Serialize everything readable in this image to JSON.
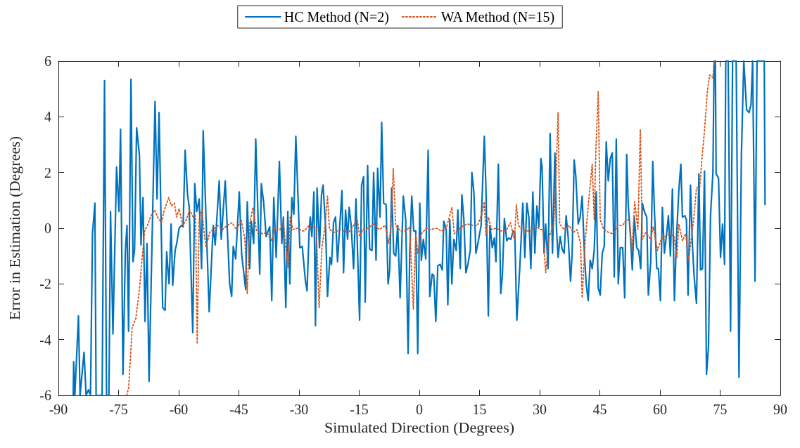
{
  "chart_data": {
    "type": "line",
    "xlabel": "Simulated Direction (Degrees)",
    "ylabel": "Error in Estimation (Degrees)",
    "xlim": [
      -90,
      90
    ],
    "xticks": [
      -90,
      -75,
      -60,
      -45,
      -30,
      -15,
      0,
      15,
      30,
      45,
      60,
      75,
      90
    ],
    "ylim": [
      -6,
      6
    ],
    "yticks": [
      -6,
      -4,
      -2,
      0,
      2,
      4,
      6
    ],
    "grid": false,
    "legend": "top",
    "marker": "none",
    "series": [
      {
        "name": "HC Method (N=2)",
        "color": "#0072bd",
        "line_style": "solid",
        "x": [
          -86.3,
          -86.2,
          -85.9,
          -85.0,
          -84.6,
          -83.6,
          -83.1,
          -82.5,
          -82.0,
          -81.5,
          -80.9,
          -80.6,
          -79.1,
          -78.5,
          -78.0,
          -77.4,
          -77.0,
          -76.4,
          -75.5,
          -74.9,
          -74.5,
          -73.9,
          -73.3,
          -72.9,
          -72.5,
          -71.9,
          -71.4,
          -71.0,
          -70.5,
          -69.8,
          -69.4,
          -68.9,
          -68.4,
          -67.9,
          -67.4,
          -65.9,
          -65.4,
          -64.9,
          -64.0,
          -63.4,
          -63.0,
          -62.4,
          -61.9,
          -61.5,
          -60.9,
          -60.5,
          -59.9,
          -59.3,
          -58.9,
          -58.4,
          -57.8,
          -57.4,
          -56.5,
          -56.0,
          -55.5,
          -54.9,
          -54.3,
          -53.9,
          -53.2,
          -52.4,
          -51.4,
          -50.9,
          -49.9,
          -49.4,
          -48.4,
          -47.3,
          -46.8,
          -46.4,
          -45.8,
          -44.9,
          -44.3,
          -43.3,
          -42.9,
          -42.3,
          -41.9,
          -41.3,
          -40.8,
          -39.8,
          -39.4,
          -38.8,
          -38.2,
          -37.7,
          -37.3,
          -36.8,
          -36.3,
          -35.7,
          -34.9,
          -34.3,
          -33.9,
          -33.3,
          -32.8,
          -32.3,
          -31.8,
          -31.3,
          -30.8,
          -29.8,
          -29.2,
          -28.4,
          -28.0,
          -27.5,
          -27.2,
          -26.8,
          -26.3,
          -25.9,
          -25.5,
          -24.9,
          -24.4,
          -24.0,
          -23.4,
          -22.9,
          -22.3,
          -21.9,
          -21.4,
          -20.9,
          -20.4,
          -19.3,
          -18.9,
          -18.4,
          -17.9,
          -17.5,
          -17.0,
          -16.4,
          -15.8,
          -14.9,
          -14.4,
          -13.9,
          -13.5,
          -12.9,
          -12.4,
          -11.8,
          -11.4,
          -10.8,
          -10.4,
          -9.8,
          -9.4,
          -8.9,
          -8.3,
          -7.8,
          -7.4,
          -6.9,
          -6.4,
          -5.9,
          -5.4,
          -4.8,
          -4.0,
          -3.4,
          -2.8,
          -2.4,
          -1.9,
          -1.4,
          -0.9,
          -0.4,
          0.1,
          0.5,
          1.0,
          1.6,
          2.2,
          2.6,
          3.2,
          3.6,
          4.1,
          4.6,
          5.2,
          5.7,
          6.1,
          6.7,
          7.1,
          7.6,
          8.1,
          8.6,
          9.2,
          9.6,
          10.2,
          10.6,
          11.1,
          11.6,
          12.1,
          12.7,
          13.1,
          13.6,
          14.1,
          14.6,
          15.4,
          16.2,
          16.6,
          17.2,
          17.6,
          18.2,
          18.7,
          19.1,
          19.7,
          20.3,
          20.7,
          21.2,
          21.8,
          22.3,
          22.8,
          23.4,
          23.8,
          24.3,
          25.1,
          25.8,
          26.3,
          26.8,
          27.3,
          27.8,
          28.3,
          28.8,
          29.3,
          29.8,
          30.3,
          30.6,
          31.1,
          31.5,
          32.1,
          32.6,
          33.2,
          33.8,
          34.2,
          34.6,
          35.1,
          35.6,
          36.1,
          36.6,
          37.1,
          37.7,
          38.1,
          38.6,
          39.0,
          39.6,
          40.1,
          40.6,
          41.2,
          41.6,
          42.1,
          42.6,
          43.1,
          43.6,
          44.1,
          44.6,
          45.1,
          45.6,
          46.1,
          46.6,
          47.1,
          47.6,
          48.1,
          48.6,
          49.1,
          49.6,
          50.1,
          50.7,
          51.2,
          51.7,
          52.1,
          52.6,
          53.1,
          53.6,
          54.2,
          54.7,
          55.2,
          55.6,
          56.1,
          56.7,
          57.1,
          57.7,
          58.2,
          58.6,
          59.2,
          59.6,
          60.1,
          60.6,
          61.1,
          61.7,
          62.1,
          62.6,
          63.1,
          63.6,
          64.1,
          64.7,
          65.2,
          65.6,
          66.2,
          66.6,
          67.0,
          67.6,
          68.1,
          68.5,
          69.1,
          69.7,
          70.1,
          70.6,
          71.1,
          71.6,
          72.1,
          72.6,
          73.2,
          73.5,
          73.8,
          74.0,
          74.6,
          75.1,
          75.6,
          76.1,
          76.4,
          77.0,
          77.6,
          78.1,
          79.0,
          79.7,
          80.3,
          80.9,
          81.6,
          82.2,
          82.7,
          83.1,
          83.7,
          84.2,
          86.0,
          86.2
        ],
        "values": [
          -6,
          -4.8,
          -6,
          -3.15,
          -6,
          -4.45,
          -6,
          -5.8,
          -6,
          -0.2,
          0.9,
          -6,
          -6,
          5.3,
          -6,
          -6,
          0.6,
          -3.8,
          2.2,
          0.6,
          3.55,
          -5.25,
          -0.8,
          0.1,
          -3.7,
          5.35,
          -1.2,
          -0.75,
          3.6,
          2.65,
          -0.6,
          1.1,
          -3.35,
          -0.55,
          -5.5,
          4.55,
          1.05,
          4.15,
          -2.85,
          -2.95,
          -0.85,
          -2.0,
          0.15,
          -2.05,
          -0.8,
          -0.55,
          0,
          0.1,
          0.05,
          2.8,
          1.2,
          0.8,
          -3.75,
          1.6,
          0.6,
          1.05,
          -1.45,
          3.5,
          0.4,
          -3.0,
          0.1,
          -0.6,
          1.7,
          -0.4,
          1.7,
          -2.0,
          -2.45,
          -0.65,
          -1.1,
          1.3,
          -0.95,
          -2.2,
          0.95,
          -1.45,
          0.25,
          -0.55,
          3.2,
          -1.65,
          1.6,
          0.9,
          -0.3,
          -0.1,
          0.05,
          -2.6,
          1.1,
          -1.05,
          2.4,
          -0.55,
          0.4,
          -2.85,
          0.6,
          -2.0,
          1.1,
          0.5,
          3.3,
          -0.7,
          -0.65,
          -1.9,
          -2.25,
          -0.15,
          0.4,
          -0.3,
          1.3,
          -3.5,
          1.45,
          -0.7,
          1.2,
          1.55,
          0.1,
          -2.45,
          -1.05,
          -1.3,
          0.2,
          0.4,
          -1.2,
          1.35,
          -1.6,
          0.65,
          -0.4,
          0.75,
          0.1,
          -1.45,
          1.05,
          -3.3,
          1.55,
          1.85,
          -2.65,
          2.25,
          -0.75,
          -0.8,
          2.0,
          -1.15,
          2.15,
          0.4,
          3.8,
          0.9,
          0.85,
          -2.0,
          -1.5,
          1.45,
          -0.9,
          -1.0,
          0.1,
          -2.5,
          1.15,
          0.3,
          -4.5,
          -0.95,
          1.15,
          -0.1,
          -0.1,
          -4.5,
          0.9,
          -1.15,
          -0.4,
          -1.1,
          2.8,
          -2.45,
          -1.65,
          -1.7,
          -3.35,
          -1.35,
          -1.3,
          -1.5,
          0.25,
          -0.05,
          -2.75,
          0.3,
          -2.0,
          -0.4,
          -0.8,
          0.65,
          -1.45,
          1.2,
          0.3,
          -1.6,
          -1.3,
          -0.8,
          2.0,
          1.3,
          -0.9,
          -0.55,
          0.1,
          3.3,
          1.45,
          -3.15,
          0.1,
          -0.7,
          -0.35,
          -1.2,
          2.3,
          -2.35,
          -1.7,
          0.35,
          -0.45,
          -0.35,
          -0.4,
          -0.1,
          -0.15,
          -3.3,
          -1.25,
          0.9,
          -1.05,
          0.9,
          0.4,
          -1.45,
          1.3,
          -0.9,
          0.8,
          0.05,
          2.5,
          2.2,
          -0.9,
          0.15,
          -1.45,
          3.4,
          -0.9,
          2.7,
          -0.05,
          -1.05,
          -0.3,
          -0.75,
          -0.9,
          0.45,
          -0.3,
          -1.9,
          -0.9,
          2.45,
          1.9,
          0.15,
          0.4,
          1.15,
          -1.05,
          -2.0,
          -2.6,
          -1.15,
          -1.45,
          -0.8,
          1.3,
          -2.15,
          -2.4,
          -0.9,
          -0.65,
          3.1,
          1.7,
          2.5,
          2.7,
          -1.75,
          3.2,
          -2.0,
          -0.7,
          -0.7,
          -2.5,
          2.65,
          0.8,
          -0.2,
          -1.5,
          0.4,
          -0.7,
          -0.8,
          -1.45,
          0.9,
          0.6,
          0.4,
          -2.4,
          -1.2,
          2.4,
          0.7,
          -1.45,
          -1.45,
          -2.6,
          0.75,
          -0.9,
          -0.15,
          0.45,
          -1.0,
          1.4,
          -2.6,
          -0.4,
          1.35,
          2.3,
          0.4,
          0.45,
          0.3,
          -2.4,
          1.55,
          -0.65,
          -1.7,
          -2.7,
          1.95,
          -1.5,
          -1.45,
          2.05,
          -5.25,
          -4.25,
          0.45,
          2.0,
          6,
          6,
          1.95,
          1.8,
          -1.05,
          0.15,
          -1.3,
          6,
          6,
          -3.7,
          6,
          6,
          -5.35,
          2.65,
          6,
          4.25,
          4.15,
          4.45,
          6,
          -1.9,
          6,
          6,
          0.85
        ]
      },
      {
        "name": "WA Method (N=15)",
        "color": "#d95319",
        "line_style": "dotted",
        "x": [
          -73.0,
          -72.5,
          -71.6,
          -70.7,
          -69.8,
          -69.2,
          -68.5,
          -67.8,
          -66.9,
          -66.0,
          -65.1,
          -64.3,
          -63.7,
          -62.5,
          -61.8,
          -61.1,
          -60.5,
          -59.9,
          -59.0,
          -58.1,
          -57.3,
          -56.4,
          -55.8,
          -55.4,
          -54.9,
          -54.2,
          -53.7,
          -53.2,
          -52.3,
          -51.4,
          -50.2,
          -49.1,
          -47.9,
          -46.7,
          -45.6,
          -44.4,
          -43.5,
          -42.9,
          -42.3,
          -41.5,
          -40.6,
          -39.1,
          -38.0,
          -36.8,
          -35.9,
          -34.7,
          -33.9,
          -32.8,
          -32.2,
          -31.5,
          -30.4,
          -29.2,
          -28.7,
          -27.5,
          -26.3,
          -25.7,
          -25.0,
          -24.3,
          -23.5,
          -22.9,
          -22.4,
          -21.1,
          -19.9,
          -18.7,
          -17.6,
          -16.4,
          -15.5,
          -14.9,
          -14.1,
          -12.9,
          -11.4,
          -10.0,
          -8.5,
          -7.6,
          -7.1,
          -6.5,
          -5.9,
          -4.7,
          -3.3,
          -2.4,
          -1.5,
          -0.9,
          -0.4,
          0.5,
          1.7,
          2.9,
          4.3,
          5.5,
          6.7,
          7.5,
          8.1,
          8.7,
          9.9,
          11.0,
          12.2,
          13.4,
          14.5,
          15.7,
          16.2,
          16.6,
          17.2,
          18.0,
          19.2,
          20.4,
          21.8,
          22.7,
          23.7,
          24.2,
          24.7,
          25.6,
          26.8,
          27.9,
          29.1,
          30.0,
          30.8,
          31.5,
          32.3,
          33.5,
          34.0,
          34.6,
          35.0,
          36.1,
          37.3,
          38.4,
          39.3,
          40.2,
          40.6,
          41.3,
          42.2,
          43.1,
          43.6,
          44.0,
          44.6,
          45.1,
          46.0,
          47.2,
          48.3,
          49.5,
          50.7,
          51.6,
          52.4,
          53.0,
          53.7,
          54.5,
          55.1,
          55.6,
          56.5,
          57.7,
          58.3,
          59.4,
          60.3,
          61.2,
          62.4,
          63.5,
          64.2,
          64.7,
          65.6,
          66.4,
          67.1,
          67.9,
          68.5,
          69.1,
          69.9,
          70.4,
          71.1,
          71.8,
          72.4,
          73.2,
          73.5
        ],
        "values": [
          -6,
          -5.75,
          -3.55,
          -3.25,
          -2.2,
          -1.2,
          -0.1,
          0.1,
          0.45,
          0.65,
          0.35,
          0.2,
          0.6,
          1.1,
          0.8,
          0.9,
          0.4,
          0.7,
          0.1,
          0.3,
          0.65,
          0.4,
          0.45,
          -4.15,
          0.3,
          0.65,
          -0.1,
          -0.7,
          -0.15,
          -0.05,
          0.1,
          -0.05,
          0.1,
          0.2,
          -0.05,
          0.3,
          -0.4,
          -2.35,
          0.15,
          0.75,
          -0.1,
          -0.2,
          -0.15,
          -0.45,
          0.05,
          -0.05,
          0.2,
          -1.4,
          0.4,
          -0.05,
          0,
          -0.1,
          -0.1,
          0.1,
          0.05,
          0,
          -2.85,
          -0.7,
          0.1,
          1.15,
          -0.05,
          -0.15,
          -0.05,
          -0.1,
          -0.15,
          0.1,
          0.35,
          -0.3,
          -0.05,
          0,
          0.15,
          -0.05,
          0.1,
          -0.55,
          0.05,
          2.15,
          0.1,
          -0.1,
          -0.1,
          0.05,
          -2.9,
          -0.2,
          -0.9,
          -0.2,
          0,
          -0.05,
          0,
          -0.1,
          0,
          0.4,
          0.75,
          -0.2,
          -0.05,
          0.1,
          0.15,
          0.1,
          0.1,
          0.55,
          0.95,
          -0.25,
          0.4,
          -0.05,
          0,
          -0.1,
          -0.05,
          0.2,
          -0.4,
          0.85,
          0.1,
          -0.05,
          -0.1,
          -0.1,
          0.1,
          -0.05,
          -0.05,
          -1.6,
          -0.35,
          0.15,
          1.55,
          4.15,
          0.15,
          -0.05,
          0.1,
          -0.15,
          -0.05,
          -0.55,
          -2.5,
          -0.55,
          0.95,
          2.3,
          0.3,
          2.75,
          4.9,
          0.3,
          -0.05,
          -0.15,
          -0.2,
          0.1,
          0.1,
          0.3,
          0.3,
          -0.8,
          0.95,
          -0.05,
          3.55,
          -0.4,
          -0.15,
          -0.4,
          0.05,
          -0.8,
          -0.4,
          -0.3,
          -0.2,
          -0.3,
          -1.05,
          0.15,
          -0.45,
          -0.2,
          -1.15,
          -0.3,
          0.45,
          1.45,
          1.45,
          2.4,
          3.5,
          4.9,
          5.5,
          5.4,
          6
        ]
      }
    ]
  }
}
